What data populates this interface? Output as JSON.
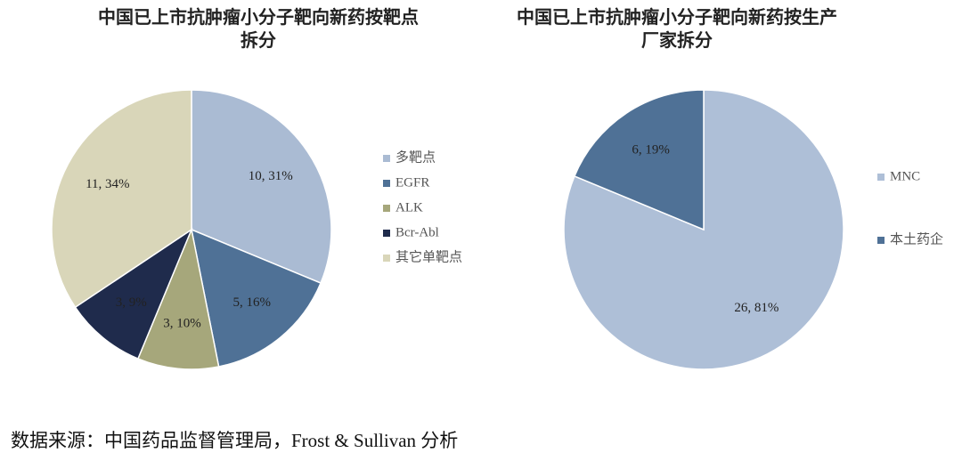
{
  "chart_data": [
    {
      "type": "pie",
      "title": [
        "中国已上市抗肿瘤小分子靶向新药按靶点",
        "拆分"
      ],
      "categories": [
        "多靶点",
        "EGFR",
        "ALK",
        "Bcr-Abl",
        "其它单靶点"
      ],
      "values": [
        10,
        5,
        3,
        3,
        11
      ],
      "value_labels": [
        "10, 31%",
        "5, 16%",
        "3, 10%",
        "3, 9%",
        "11, 34%"
      ],
      "colors": [
        "#aabbd3",
        "#4f7196",
        "#a6a77b",
        "#1f2b4c",
        "#d9d6b9"
      ]
    },
    {
      "type": "pie",
      "title": [
        "中国已上市抗肿瘤小分子靶向新药按生产",
        "厂家拆分"
      ],
      "categories": [
        "MNC",
        "本土药企"
      ],
      "values": [
        26,
        6
      ],
      "value_labels": [
        "26, 81%",
        "6, 19%"
      ],
      "colors": [
        "#aebfd7",
        "#4f7196"
      ]
    }
  ],
  "source": "数据来源：中国药品监督管理局，Frost & Sullivan 分析"
}
